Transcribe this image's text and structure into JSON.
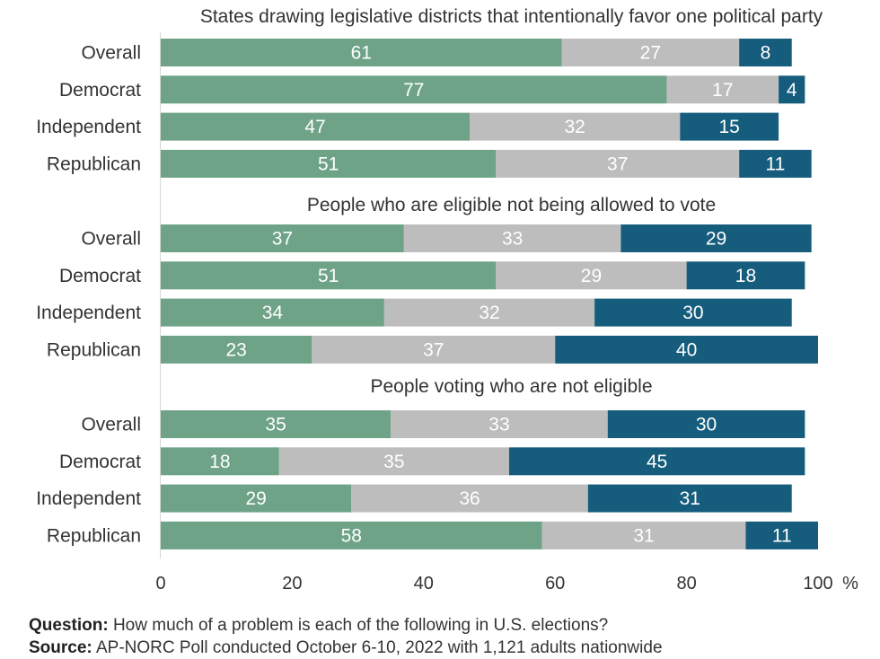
{
  "chart_data": {
    "type": "bar",
    "orientation": "horizontal",
    "stacked": true,
    "groups": [
      {
        "title": "States drawing legislative districts that intentionally favor one political party",
        "categories": [
          "Overall",
          "Democrat",
          "Independent",
          "Republican"
        ],
        "series": [
          {
            "values": [
              61,
              77,
              47,
              51
            ]
          },
          {
            "values": [
              27,
              17,
              32,
              37
            ]
          },
          {
            "values": [
              8,
              4,
              15,
              11
            ]
          }
        ]
      },
      {
        "title": "People who are eligible not being allowed to vote",
        "categories": [
          "Overall",
          "Democrat",
          "Independent",
          "Republican"
        ],
        "series": [
          {
            "values": [
              37,
              51,
              34,
              23
            ]
          },
          {
            "values": [
              33,
              29,
              32,
              37
            ]
          },
          {
            "values": [
              29,
              18,
              30,
              40
            ]
          }
        ]
      },
      {
        "title": "People voting who are not eligible",
        "categories": [
          "Overall",
          "Democrat",
          "Independent",
          "Republican"
        ],
        "series": [
          {
            "values": [
              35,
              18,
              29,
              58
            ]
          },
          {
            "values": [
              33,
              35,
              36,
              31
            ]
          },
          {
            "values": [
              30,
              45,
              31,
              11
            ]
          }
        ]
      }
    ],
    "series_colors": [
      "#6ea388",
      "#bdbdbd",
      "#165d7d"
    ],
    "label_colors": [
      "#ffffff",
      "#ffffff",
      "#ffffff"
    ],
    "xlim": [
      0,
      100
    ],
    "xticks": [
      0,
      20,
      40,
      60,
      80,
      100
    ],
    "xunit": "%",
    "grid": false
  },
  "footer": {
    "question_label": "Question:",
    "question_text": "How much of a problem is each of the following in U.S. elections?",
    "source_label": "Source:",
    "source_text": "AP-NORC Poll conducted October 6-10, 2022 with 1,121 adults nationwide"
  }
}
